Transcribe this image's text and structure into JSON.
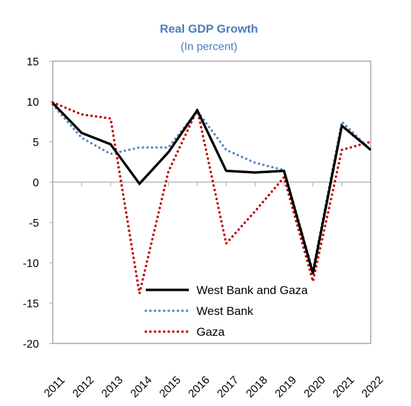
{
  "chart_data": {
    "type": "line",
    "title": "Real GDP Growth",
    "subtitle": "(In percent)",
    "x": [
      "2011",
      "2012",
      "2013",
      "2014",
      "2015",
      "2016",
      "2017",
      "2018",
      "2019",
      "2020",
      "2021",
      "2022"
    ],
    "ylim": [
      -20,
      15
    ],
    "yticks": [
      "15",
      "10",
      "5",
      "0",
      "-5",
      "-10",
      "-15",
      "-20"
    ],
    "grid": false,
    "legend_position": "bottom-center",
    "series": [
      {
        "name": "West Bank and Gaza",
        "style": "solid",
        "color": "#000000",
        "values": [
          9.8,
          6.1,
          4.7,
          -0.2,
          3.7,
          8.9,
          1.4,
          1.2,
          1.4,
          -11.3,
          7.0,
          4.0
        ]
      },
      {
        "name": "West Bank",
        "style": "dotted",
        "color": "#5b8bbd",
        "values": [
          9.6,
          5.5,
          3.5,
          4.3,
          4.3,
          8.8,
          4.0,
          2.4,
          1.5,
          -11.0,
          7.5,
          4.0
        ]
      },
      {
        "name": "Gaza",
        "style": "dotted",
        "color": "#c00000",
        "values": [
          9.9,
          8.4,
          7.9,
          -13.8,
          1.3,
          9.0,
          -7.6,
          -3.6,
          0.6,
          -12.3,
          4.0,
          5.0
        ]
      }
    ]
  },
  "colors": {
    "title": "#4a7ebb",
    "axis": "#a6a6a6"
  }
}
